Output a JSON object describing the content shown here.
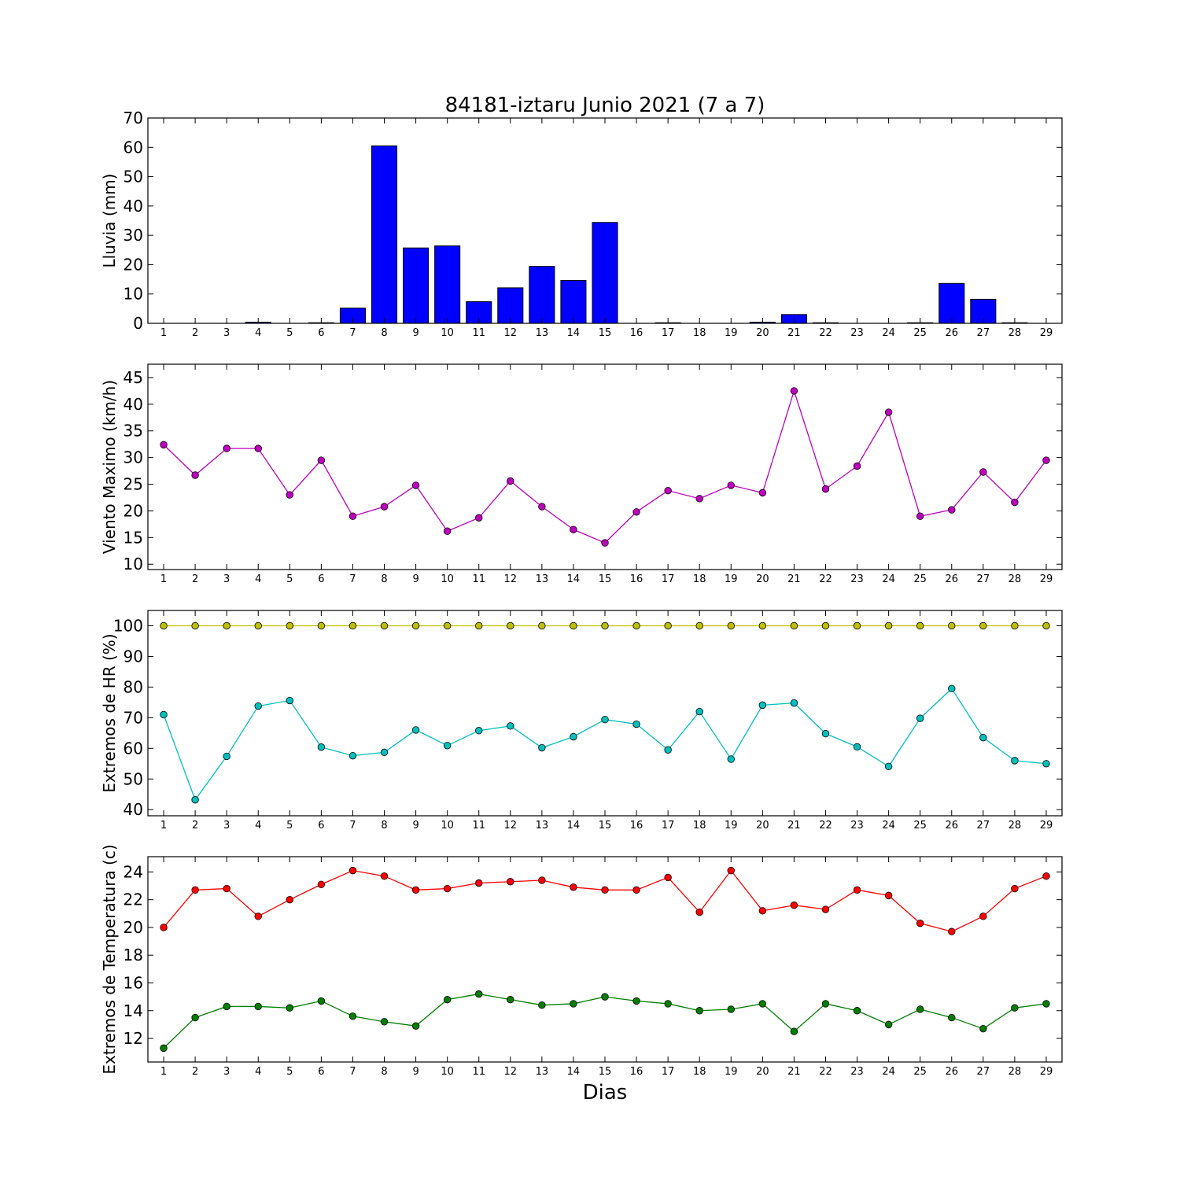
{
  "title": "84181-iztaru Junio 2021  (7 a 7)",
  "xlabel": "Dias",
  "colors": {
    "rain": "#0000ff",
    "wind": "#bf00bf",
    "hr_max": "#bfbf00",
    "hr_min": "#00bfbf",
    "temp_max": "#ff0000",
    "temp_min": "#007f00"
  },
  "chart_data": [
    {
      "type": "bar",
      "ylabel": "Lluvia (mm)",
      "ylim": [
        0,
        70
      ],
      "yticks": [
        0,
        10,
        20,
        30,
        40,
        50,
        60,
        70
      ],
      "categories": [
        1,
        2,
        3,
        4,
        5,
        6,
        7,
        8,
        9,
        10,
        11,
        12,
        13,
        14,
        15,
        16,
        17,
        18,
        19,
        20,
        21,
        22,
        23,
        24,
        25,
        26,
        27,
        28,
        29
      ],
      "series": [
        {
          "values": [
            0,
            0,
            0,
            0.4,
            0,
            0.2,
            5.2,
            60.5,
            25.7,
            26.4,
            7.4,
            12.1,
            19.4,
            14.6,
            34.4,
            0,
            0.2,
            0,
            0,
            0.4,
            3.0,
            0.2,
            0,
            0,
            0.2,
            13.6,
            8.2,
            0.2,
            0
          ],
          "color": "#0000ff"
        }
      ]
    },
    {
      "type": "line",
      "ylabel": "Viento Maximo (km/h)",
      "ylim": [
        9,
        47.5
      ],
      "yticks": [
        10,
        15,
        20,
        25,
        30,
        35,
        40,
        45
      ],
      "x": [
        1,
        2,
        3,
        4,
        5,
        6,
        7,
        8,
        9,
        10,
        11,
        12,
        13,
        14,
        15,
        16,
        17,
        18,
        19,
        20,
        21,
        22,
        23,
        24,
        25,
        26,
        27,
        28,
        29
      ],
      "series": [
        {
          "values": [
            32.4,
            26.7,
            31.7,
            31.7,
            23.0,
            29.5,
            19.0,
            20.8,
            24.8,
            16.2,
            18.7,
            25.6,
            20.8,
            16.5,
            14.0,
            19.8,
            23.8,
            22.3,
            24.8,
            23.4,
            42.5,
            24.1,
            28.4,
            38.5,
            19.0,
            20.2,
            27.3,
            21.6,
            29.5
          ],
          "color": "#bf00bf"
        }
      ]
    },
    {
      "type": "line",
      "ylabel": "Extremos de HR (%)",
      "ylim": [
        38,
        105
      ],
      "yticks": [
        40,
        50,
        60,
        70,
        80,
        90,
        100
      ],
      "x": [
        1,
        2,
        3,
        4,
        5,
        6,
        7,
        8,
        9,
        10,
        11,
        12,
        13,
        14,
        15,
        16,
        17,
        18,
        19,
        20,
        21,
        22,
        23,
        24,
        25,
        26,
        27,
        28,
        29
      ],
      "series": [
        {
          "values": [
            100,
            100,
            100,
            100,
            100,
            100,
            100,
            100,
            100,
            100,
            100,
            100,
            100,
            100,
            100,
            100,
            100,
            100,
            100,
            100,
            100,
            100,
            100,
            100,
            100,
            100,
            100,
            100,
            100
          ],
          "color": "#bfbf00"
        },
        {
          "values": [
            71,
            43.2,
            57.4,
            73.8,
            75.6,
            60.4,
            57.6,
            58.7,
            66.0,
            60.9,
            65.8,
            67.3,
            60.2,
            63.8,
            69.4,
            67.9,
            59.5,
            72.0,
            56.5,
            74.1,
            74.8,
            64.8,
            60.5,
            54.1,
            69.8,
            79.5,
            63.5,
            56.0,
            55.0
          ],
          "color": "#00bfbf"
        }
      ]
    },
    {
      "type": "line",
      "ylabel": "Extremos de Temperatura (c)",
      "ylim": [
        10.3,
        25.1
      ],
      "yticks": [
        12,
        14,
        16,
        18,
        20,
        22,
        24
      ],
      "x": [
        1,
        2,
        3,
        4,
        5,
        6,
        7,
        8,
        9,
        10,
        11,
        12,
        13,
        14,
        15,
        16,
        17,
        18,
        19,
        20,
        21,
        22,
        23,
        24,
        25,
        26,
        27,
        28,
        29
      ],
      "series": [
        {
          "values": [
            20.0,
            22.7,
            22.8,
            20.8,
            22.0,
            23.1,
            24.1,
            23.7,
            22.7,
            22.8,
            23.2,
            23.3,
            23.4,
            22.9,
            22.7,
            22.7,
            23.6,
            21.1,
            24.1,
            21.2,
            21.6,
            21.3,
            22.7,
            22.3,
            20.3,
            19.7,
            20.8,
            22.8,
            23.7
          ],
          "color": "#ff0000"
        },
        {
          "values": [
            11.3,
            13.5,
            14.3,
            14.3,
            14.2,
            14.7,
            13.6,
            13.2,
            12.9,
            14.8,
            15.2,
            14.8,
            14.4,
            14.5,
            15.0,
            14.7,
            14.5,
            14.0,
            14.1,
            14.5,
            12.5,
            14.5,
            14.0,
            13.0,
            14.1,
            13.5,
            12.7,
            14.2,
            14.5
          ],
          "color": "#007f00"
        }
      ]
    }
  ]
}
